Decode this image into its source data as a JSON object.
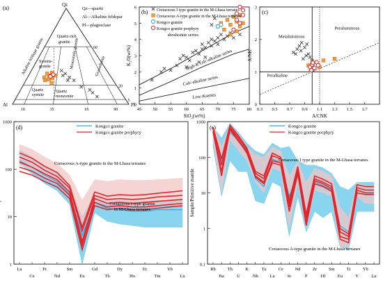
{
  "chart_data": [
    {
      "panel": "(a)",
      "type": "scatter",
      "subtype": "QAP ternary diagram",
      "apices": {
        "top": "Qz",
        "left": "Al",
        "right": "Pl"
      },
      "legend_lines": [
        "Qz—quartz",
        "Al—Alkaline feldspar",
        "Pl—plagioclase"
      ],
      "base_ticks": [
        "10",
        "35",
        "65",
        "90"
      ],
      "side_ticks": [
        "60",
        "20",
        "5"
      ],
      "fields": [
        "Quartz-rich granite",
        "Alkaline feldspar granite",
        "Syenite-granite",
        "Monzonitic granite",
        "Granodiorite",
        "Quartz syenite",
        "Quartz monzonite",
        "Tonalite"
      ]
    },
    {
      "panel": "(b)",
      "type": "scatter",
      "xlabel": "SiO₂(wt%)",
      "ylabel": "K₂O(wt%)",
      "xlim": [
        45,
        80
      ],
      "ylim": [
        0,
        6
      ],
      "xticks": [
        "45",
        "50",
        "55",
        "60",
        "65",
        "70",
        "75",
        "80"
      ],
      "yticks": [
        "0",
        "1",
        "2",
        "3",
        "4",
        "5",
        "6"
      ],
      "fields": [
        "shoshonite series",
        "High-K calc-alkaline series",
        "Calc-alkaline series",
        "Low-Kseries"
      ],
      "legend": [
        "Cretaceous I type granite in the M-Lhasa terranes",
        "Cretaceous A-type granite in the M-Lhasa terranes",
        "Kongco granite",
        "Kongco granite porphyry"
      ],
      "series": [
        {
          "name": "Cretaceous I type granite in the M-Lhasa terranes",
          "marker": "x",
          "color": "#333333",
          "points": [
            [
              49,
              1.5
            ],
            [
              52,
              2.0
            ],
            [
              53,
              2.2
            ],
            [
              55,
              2.1
            ],
            [
              57,
              2.4
            ],
            [
              58,
              2.8
            ],
            [
              59,
              3.0
            ],
            [
              60,
              2.9
            ],
            [
              61,
              2.7
            ],
            [
              62,
              3.2
            ],
            [
              63,
              3.3
            ],
            [
              64,
              3.1
            ],
            [
              65,
              3.4
            ],
            [
              65,
              3.7
            ],
            [
              66,
              3.5
            ],
            [
              67,
              3.8
            ],
            [
              68,
              3.6
            ],
            [
              68,
              4.0
            ],
            [
              69,
              3.9
            ],
            [
              70,
              4.1
            ],
            [
              70,
              3.7
            ],
            [
              71,
              4.3
            ],
            [
              72,
              4.0
            ],
            [
              73,
              4.2
            ],
            [
              74,
              4.4
            ],
            [
              75,
              4.1
            ],
            [
              76,
              4.5
            ],
            [
              77,
              4.3
            ],
            [
              60,
              2.3
            ],
            [
              64,
              2.6
            ],
            [
              66,
              2.9
            ],
            [
              68,
              4.9
            ],
            [
              69,
              5.3
            ]
          ]
        },
        {
          "name": "Cretaceous A-type granite in the M-Lhasa terranes",
          "marker": "square",
          "color": "#f39a3a",
          "points": [
            [
              70,
              4.8
            ],
            [
              71,
              5.0
            ],
            [
              72,
              4.6
            ],
            [
              73,
              5.2
            ],
            [
              74,
              4.9
            ],
            [
              75,
              5.4
            ],
            [
              76,
              5.1
            ],
            [
              77,
              5.5
            ],
            [
              77,
              4.8
            ],
            [
              76,
              4.5
            ],
            [
              74,
              4.3
            ],
            [
              78,
              5.0
            ]
          ]
        },
        {
          "name": "Kongco granite",
          "marker": "circle",
          "color": "#2aa6e0",
          "points": [
            [
              70,
              4.8
            ],
            [
              71,
              4.9
            ]
          ]
        },
        {
          "name": "Kongco granite porphyry",
          "marker": "circle",
          "color": "#e0262b",
          "points": [
            [
              75,
              4.6
            ],
            [
              76,
              5.2
            ],
            [
              77,
              5.0
            ],
            [
              78,
              5.5
            ],
            [
              78,
              5.8
            ],
            [
              77,
              6.0
            ],
            [
              76,
              5.6
            ]
          ]
        }
      ]
    },
    {
      "panel": "(c)",
      "type": "scatter",
      "xlabel": "A/CNK",
      "ylabel": "A/NK",
      "xlim": [
        0.3,
        1.9
      ],
      "ylim": [
        0,
        3
      ],
      "xticks": [
        "0.3",
        "0.5",
        "0.7",
        "0.9",
        "1.1",
        "1.3",
        "1.5",
        "1.7"
      ],
      "yticks": [
        "0",
        "1",
        "2",
        "3"
      ],
      "fields": [
        "Metaluminous",
        "Peraluminous",
        "Peralkaline"
      ],
      "series": [
        {
          "name": "Cretaceous I type granite in the M-Lhasa terranes",
          "marker": "x",
          "color": "#333333",
          "points": [
            [
              0.75,
              1.6
            ],
            [
              0.8,
              1.7
            ],
            [
              0.85,
              1.65
            ],
            [
              0.9,
              1.75
            ],
            [
              0.92,
              1.5
            ],
            [
              0.95,
              1.55
            ],
            [
              0.88,
              1.4
            ],
            [
              0.83,
              1.8
            ],
            [
              0.78,
              1.55
            ],
            [
              0.97,
              1.45
            ],
            [
              1.0,
              1.35
            ],
            [
              0.93,
              1.85
            ],
            [
              0.86,
              1.9
            ]
          ]
        },
        {
          "name": "Cretaceous A-type granite in the M-Lhasa terranes",
          "marker": "square",
          "color": "#f39a3a",
          "points": [
            [
              0.95,
              1.2
            ],
            [
              1.0,
              1.3
            ],
            [
              1.05,
              1.25
            ],
            [
              1.1,
              1.15
            ],
            [
              1.15,
              1.35
            ],
            [
              0.98,
              1.05
            ],
            [
              1.02,
              1.1
            ],
            [
              1.3,
              1.4
            ]
          ]
        },
        {
          "name": "Kongco granite",
          "marker": "circle",
          "color": "#2aa6e0",
          "points": [
            [
              1.02,
              1.18
            ],
            [
              1.05,
              1.2
            ]
          ]
        },
        {
          "name": "Kongco granite porphyry",
          "marker": "circle",
          "color": "#e0262b",
          "points": [
            [
              0.97,
              1.15
            ],
            [
              1.0,
              1.22
            ],
            [
              1.03,
              1.12
            ],
            [
              1.06,
              1.3
            ],
            [
              1.08,
              1.2
            ],
            [
              0.99,
              1.05
            ],
            [
              1.01,
              1.28
            ]
          ]
        }
      ]
    },
    {
      "panel": "(d)",
      "type": "line",
      "ylabel": "Sample/Chondrite",
      "ylog": true,
      "ylim": [
        1,
        1000
      ],
      "yticks": [
        "1",
        "10",
        "100",
        "1000"
      ],
      "categories_top": [
        "La",
        "Pr",
        "Sm",
        "Gd",
        "Dy",
        "Er",
        "Yb"
      ],
      "categories_bottom": [
        "Ce",
        "Nd",
        "Eu",
        "Tb",
        "Ho",
        "Tm",
        "Lu"
      ],
      "categories": [
        "La",
        "Ce",
        "Pr",
        "Nd",
        "Sm",
        "Eu",
        "Gd",
        "Tb",
        "Dy",
        "Ho",
        "Er",
        "Tm",
        "Yb",
        "Lu"
      ],
      "legend": [
        "Kongco granite",
        "Kongco granite porphyry"
      ],
      "annotations": [
        "Cretaceous A-type granite in the M-Lhasa terranes",
        "Cretaceous I type granite in M-Lhasa terranes"
      ],
      "envelopes": [
        {
          "name": "Cretaceous I type granite in M-Lhasa terranes",
          "color": "#62c6ea",
          "upper": [
            260,
            180,
            120,
            80,
            40,
            10,
            28,
            22,
            22,
            21,
            21,
            22,
            22,
            22
          ],
          "lower": [
            130,
            80,
            50,
            35,
            18,
            0.9,
            12,
            8,
            7,
            6.5,
            6,
            6,
            6,
            6
          ]
        },
        {
          "name": "Cretaceous A-type granite in the M-Lhasa terranes",
          "color": "#f2c6c6",
          "upper": [
            330,
            260,
            180,
            130,
            75,
            22,
            60,
            55,
            60,
            58,
            58,
            60,
            62,
            65
          ],
          "lower": [
            120,
            100,
            70,
            50,
            25,
            5,
            20,
            18,
            17,
            17,
            16,
            17,
            17,
            17
          ]
        }
      ],
      "series": [
        {
          "name": "Kongco granite",
          "color": "#2aa6e0",
          "values": [
            150,
            110,
            75,
            55,
            30,
            4,
            20,
            15,
            14,
            13,
            13,
            14,
            14,
            14
          ]
        },
        {
          "name": "Kongco granite porphyry",
          "color": "#e0262b",
          "values": [
            180,
            140,
            95,
            70,
            40,
            5,
            28,
            23,
            24,
            23,
            24,
            26,
            27,
            28
          ]
        },
        {
          "name": "Kongco granite porphyry",
          "color": "#e0262b",
          "values": [
            140,
            110,
            80,
            60,
            33,
            3,
            24,
            19,
            20,
            19,
            20,
            21,
            22,
            23
          ]
        },
        {
          "name": "Kongco granite porphyry",
          "color": "#e0262b",
          "values": [
            110,
            90,
            65,
            50,
            28,
            2.5,
            20,
            16,
            17,
            16,
            16,
            17,
            18,
            19
          ]
        },
        {
          "name": "Kongco granite porphyry",
          "color": "#e0262b",
          "values": [
            220,
            170,
            115,
            85,
            45,
            6,
            33,
            27,
            29,
            28,
            29,
            31,
            33,
            35
          ]
        },
        {
          "name": "Kongco granite porphyry",
          "color": "#e0262b",
          "values": [
            90,
            75,
            55,
            42,
            24,
            2,
            17,
            14,
            15,
            14,
            14,
            15,
            16,
            17
          ]
        }
      ]
    },
    {
      "panel": "(e)",
      "type": "line",
      "ylabel": "Sample/Primitive mantle",
      "ylog": true,
      "ylim": [
        0.1,
        1000
      ],
      "yticks": [
        "0.1",
        "1",
        "10",
        "100",
        "1000"
      ],
      "categories_top": [
        "Rb",
        "Th",
        "K",
        "Ta",
        "Ce",
        "Nd",
        "Zr",
        "Sm",
        "Ti",
        "Yb"
      ],
      "categories_bottom": [
        "Ba",
        "U",
        "Nb",
        "La",
        "Sr",
        "P",
        "Hf",
        "Eu",
        "Y",
        "Lu"
      ],
      "categories": [
        "Rb",
        "Ba",
        "Th",
        "U",
        "K",
        "Nb",
        "Ta",
        "La",
        "Ce",
        "Sr",
        "Nd",
        "P",
        "Zr",
        "Hf",
        "Sm",
        "Eu",
        "Ti",
        "Y",
        "Yb",
        "Lu"
      ],
      "legend": [
        "Kongco granite",
        "Kongco granite porphyry"
      ],
      "annotations": [
        "Cretaceous I type granite in the M-Lhasa terranes",
        "Cretaceous A-type granite in the M-Lhasa terranes"
      ],
      "envelopes": [
        {
          "name": "Cretaceous I type granite in the M-Lhasa terranes",
          "color": "#62c6ea",
          "upper": [
            700,
            350,
            900,
            500,
            250,
            150,
            120,
            250,
            180,
            200,
            80,
            60,
            60,
            50,
            35,
            15,
            12,
            20,
            20,
            20
          ],
          "lower": [
            200,
            8,
            80,
            40,
            40,
            6,
            5,
            20,
            15,
            0.6,
            8,
            0.8,
            3,
            2,
            3,
            0.3,
            0.25,
            3,
            3,
            3
          ]
        },
        {
          "name": "Cretaceous A-type granite in the M-Lhasa terranes",
          "color": "#f2c6c6",
          "upper": [
            800,
            200,
            800,
            450,
            200,
            120,
            100,
            200,
            150,
            30,
            80,
            20,
            50,
            40,
            30,
            4,
            2,
            20,
            16,
            16
          ],
          "lower": [
            300,
            10,
            300,
            150,
            80,
            20,
            10,
            50,
            40,
            1,
            20,
            1,
            12,
            10,
            8,
            0.3,
            0.3,
            8,
            5,
            5
          ]
        }
      ],
      "series": [
        {
          "name": "Kongco granite",
          "color": "#2aa6e0",
          "values": [
            600,
            80,
            500,
            300,
            150,
            25,
            15,
            90,
            70,
            8,
            35,
            2,
            20,
            16,
            12,
            1.2,
            0.8,
            12,
            10,
            10
          ]
        },
        {
          "name": "Kongco granite porphyry",
          "color": "#e0262b",
          "values": [
            650,
            60,
            700,
            350,
            160,
            35,
            25,
            110,
            90,
            5,
            50,
            2,
            25,
            20,
            15,
            0.8,
            0.6,
            14,
            12,
            12
          ]
        },
        {
          "name": "Kongco granite porphyry",
          "color": "#e0262b",
          "values": [
            500,
            40,
            600,
            280,
            140,
            30,
            20,
            80,
            70,
            4,
            40,
            1.5,
            22,
            18,
            13,
            0.6,
            0.5,
            12,
            10,
            10
          ]
        },
        {
          "name": "Kongco granite porphyry",
          "color": "#e0262b",
          "values": [
            550,
            30,
            650,
            300,
            130,
            28,
            18,
            70,
            60,
            3,
            35,
            1.2,
            18,
            15,
            11,
            0.5,
            0.4,
            10,
            9,
            9
          ]
        },
        {
          "name": "Kongco granite porphyry",
          "color": "#e0262b",
          "values": [
            700,
            90,
            800,
            400,
            180,
            40,
            30,
            130,
            100,
            6,
            55,
            2.5,
            30,
            24,
            18,
            1.0,
            0.7,
            17,
            15,
            15
          ]
        }
      ]
    }
  ]
}
